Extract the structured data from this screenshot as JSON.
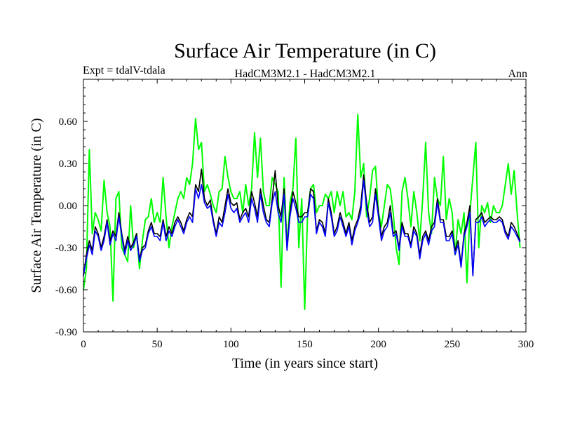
{
  "chart_data": {
    "type": "line",
    "title": "Surface Air Temperature (in C)",
    "subtitle_left": "Expt = tdalV-tdala",
    "subtitle_center": "HadCM3M2.1 - HadCM3M2.1",
    "subtitle_right": "Ann",
    "xlabel": "Time (in years since start)",
    "ylabel": "Surface Air Temperature (in C)",
    "xlim": [
      0,
      300
    ],
    "ylim": [
      -0.9,
      0.9
    ],
    "x_ticks": [
      0,
      50,
      100,
      150,
      200,
      250,
      300
    ],
    "y_ticks": [
      -0.9,
      -0.6,
      -0.3,
      0.0,
      0.3,
      0.6
    ],
    "x_tick_labels": [
      "0",
      "50",
      "100",
      "150",
      "200",
      "250",
      "300"
    ],
    "y_tick_labels": [
      "-0.90",
      "-0.60",
      "-0.30",
      "0.00",
      "0.30",
      "0.60"
    ],
    "x_start": 0,
    "x_step": 2,
    "series": [
      {
        "name": "black",
        "color": "#000000",
        "values": [
          -0.5,
          -0.35,
          -0.25,
          -0.32,
          -0.15,
          -0.2,
          -0.3,
          -0.22,
          -0.1,
          -0.25,
          -0.18,
          -0.22,
          -0.05,
          -0.2,
          -0.32,
          -0.22,
          -0.3,
          -0.26,
          -0.2,
          -0.38,
          -0.3,
          -0.28,
          -0.18,
          -0.12,
          -0.2,
          -0.2,
          -0.22,
          -0.1,
          -0.22,
          -0.15,
          -0.2,
          -0.12,
          -0.08,
          -0.12,
          -0.18,
          -0.1,
          -0.05,
          -0.08,
          0.15,
          0.1,
          0.26,
          0.05,
          0.0,
          0.04,
          -0.1,
          -0.2,
          -0.08,
          -0.12,
          0.0,
          0.12,
          0.02,
          0.0,
          0.02,
          -0.1,
          -0.05,
          -0.02,
          -0.08,
          0.1,
          0.02,
          -0.08,
          0.12,
          0.0,
          -0.1,
          -0.12,
          0.05,
          0.25,
          0.0,
          -0.08,
          0.12,
          -0.3,
          -0.05,
          0.1,
          0.02,
          -0.08,
          -0.08,
          -0.05,
          -0.05,
          0.12,
          0.1,
          -0.18,
          -0.1,
          -0.12,
          -0.2,
          0.05,
          -0.05,
          -0.2,
          -0.15,
          -0.05,
          -0.12,
          -0.2,
          -0.12,
          -0.25,
          -0.15,
          -0.1,
          0.0,
          0.22,
          0.02,
          -0.12,
          -0.08,
          0.12,
          -0.05,
          -0.22,
          -0.15,
          -0.12,
          0.0,
          -0.2,
          -0.18,
          -0.3,
          -0.12,
          -0.2,
          -0.2,
          -0.28,
          -0.15,
          -0.2,
          -0.35,
          -0.22,
          -0.18,
          -0.25,
          -0.15,
          -0.12,
          0.05,
          -0.1,
          -0.1,
          -0.22,
          -0.22,
          -0.18,
          -0.32,
          -0.25,
          -0.42,
          -0.2,
          -0.12,
          0.0,
          -0.5,
          -0.1,
          -0.08,
          -0.05,
          -0.12,
          -0.1,
          -0.08,
          -0.1,
          -0.1,
          -0.08,
          -0.1,
          -0.18,
          -0.22,
          -0.12,
          -0.15,
          -0.2,
          -0.25
        ]
      },
      {
        "name": "blue",
        "color": "#0000ff",
        "values": [
          -0.5,
          -0.38,
          -0.28,
          -0.35,
          -0.18,
          -0.22,
          -0.32,
          -0.25,
          -0.12,
          -0.28,
          -0.2,
          -0.25,
          -0.08,
          -0.22,
          -0.35,
          -0.25,
          -0.32,
          -0.28,
          -0.22,
          -0.4,
          -0.32,
          -0.3,
          -0.2,
          -0.15,
          -0.22,
          -0.22,
          -0.25,
          -0.12,
          -0.25,
          -0.18,
          -0.22,
          -0.15,
          -0.1,
          -0.15,
          -0.2,
          -0.12,
          -0.08,
          -0.12,
          0.12,
          0.05,
          0.15,
          0.02,
          -0.02,
          0.0,
          -0.12,
          -0.22,
          -0.12,
          -0.15,
          -0.05,
          0.08,
          -0.02,
          -0.05,
          -0.02,
          -0.12,
          -0.08,
          -0.05,
          -0.12,
          0.05,
          -0.02,
          -0.12,
          0.08,
          -0.05,
          -0.12,
          -0.15,
          0.02,
          0.1,
          -0.05,
          -0.12,
          0.08,
          -0.32,
          -0.08,
          0.05,
          -0.02,
          -0.12,
          -0.12,
          -0.08,
          -0.08,
          0.08,
          0.05,
          -0.2,
          -0.12,
          -0.15,
          -0.22,
          0.02,
          -0.08,
          -0.22,
          -0.18,
          -0.08,
          -0.15,
          -0.22,
          -0.15,
          -0.28,
          -0.18,
          -0.12,
          -0.05,
          0.18,
          -0.02,
          -0.15,
          -0.12,
          0.08,
          -0.08,
          -0.25,
          -0.18,
          -0.15,
          -0.05,
          -0.22,
          -0.2,
          -0.32,
          -0.15,
          -0.22,
          -0.22,
          -0.3,
          -0.18,
          -0.22,
          -0.38,
          -0.25,
          -0.2,
          -0.28,
          -0.18,
          -0.15,
          0.02,
          -0.12,
          -0.12,
          -0.25,
          -0.25,
          -0.2,
          -0.35,
          -0.28,
          -0.44,
          -0.22,
          -0.15,
          -0.05,
          -0.5,
          -0.12,
          -0.12,
          -0.08,
          -0.15,
          -0.12,
          -0.1,
          -0.12,
          -0.12,
          -0.1,
          -0.12,
          -0.2,
          -0.24,
          -0.15,
          -0.18,
          -0.22,
          -0.26
        ]
      },
      {
        "name": "green",
        "color": "#00ff00",
        "values": [
          -0.6,
          -0.45,
          0.4,
          -0.2,
          -0.05,
          -0.1,
          -0.18,
          0.18,
          -0.05,
          -0.15,
          -0.68,
          0.05,
          0.1,
          -0.3,
          -0.35,
          -0.4,
          0.0,
          -0.3,
          -0.2,
          -0.45,
          -0.25,
          -0.1,
          -0.08,
          0.05,
          -0.12,
          -0.05,
          -0.12,
          0.2,
          -0.08,
          -0.3,
          -0.15,
          -0.05,
          0.05,
          0.1,
          0.05,
          0.2,
          0.15,
          0.3,
          0.62,
          0.4,
          0.45,
          0.1,
          0.15,
          0.08,
          0.0,
          -0.05,
          0.1,
          0.12,
          0.35,
          0.2,
          0.1,
          0.05,
          0.05,
          0.1,
          -0.05,
          0.15,
          0.0,
          0.12,
          0.52,
          0.2,
          0.48,
          0.1,
          0.0,
          0.0,
          0.2,
          0.15,
          0.1,
          -0.58,
          0.2,
          -0.3,
          0.02,
          0.12,
          0.48,
          -0.3,
          0.05,
          -0.74,
          -0.05,
          0.12,
          0.15,
          -0.05,
          0.0,
          0.0,
          0.08,
          0.05,
          0.1,
          -0.05,
          0.1,
          0.0,
          0.1,
          -0.08,
          -0.05,
          -0.1,
          0.1,
          0.65,
          0.2,
          0.3,
          -0.08,
          0.05,
          0.25,
          0.28,
          -0.05,
          -0.15,
          0.0,
          0.15,
          0.12,
          -0.05,
          -0.3,
          -0.42,
          0.1,
          0.2,
          0.05,
          -0.15,
          0.1,
          -0.05,
          -0.25,
          0.05,
          0.45,
          -0.05,
          -0.2,
          0.2,
          0.05,
          0.0,
          0.35,
          -0.1,
          0.05,
          -0.05,
          -0.35,
          -0.1,
          -0.2,
          -0.05,
          -0.55,
          -0.05,
          0.2,
          0.45,
          -0.3,
          0.0,
          -0.05,
          0.02,
          -0.12,
          0.0,
          -0.05,
          -0.05,
          0.0,
          0.15,
          0.3,
          0.08,
          0.25,
          -0.05,
          -0.3
        ]
      }
    ]
  }
}
